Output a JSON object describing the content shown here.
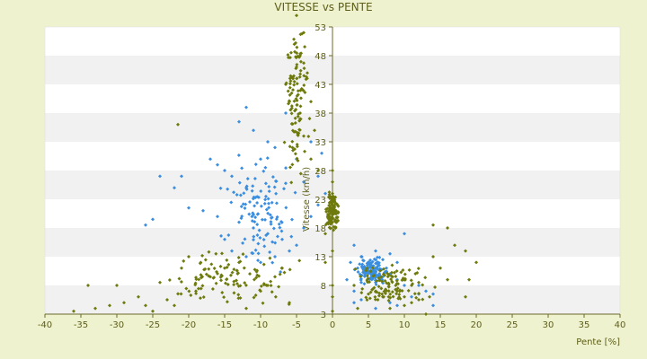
{
  "chart_data": {
    "type": "scatter",
    "title": "VITESSE vs PENTE",
    "xlabel": "Pente [%]",
    "ylabel": "Vitesse (km/h)",
    "xlim": [
      -40,
      40
    ],
    "ylim": [
      3,
      53
    ],
    "xticks": [
      -40,
      -35,
      -30,
      -25,
      -20,
      -15,
      -10,
      -5,
      0,
      5,
      10,
      15,
      20,
      25,
      30,
      35,
      40
    ],
    "yticks": [
      3,
      8,
      13,
      18,
      23,
      28,
      33,
      38,
      43,
      48,
      53
    ],
    "grid": "horizontal alternating bands",
    "legend": "none",
    "y_axis_position": "x=0",
    "series": [
      {
        "color": "#3a8ee0",
        "marker": "diamond",
        "clusters": [
          {
            "center": [
              -10,
              21
            ],
            "spread": [
              3.5,
              7
            ]
          },
          {
            "center": [
              5.5,
              10.5
            ],
            "spread": [
              1.6,
              1.6
            ]
          }
        ],
        "points": [
          [
            -12,
            39
          ],
          [
            -13,
            36.5
          ],
          [
            -11,
            35
          ],
          [
            -9,
            33
          ],
          [
            -6.5,
            38
          ],
          [
            -17,
            30
          ],
          [
            -16,
            29
          ],
          [
            -15,
            28
          ],
          [
            -8,
            32
          ],
          [
            -10,
            30
          ],
          [
            -21,
            27
          ],
          [
            -24,
            27
          ],
          [
            -22,
            25
          ],
          [
            -14,
            27
          ],
          [
            -12,
            25
          ],
          [
            -20,
            21.5
          ],
          [
            -25,
            19.5
          ],
          [
            -26,
            18.5
          ],
          [
            -18,
            21
          ],
          [
            -16,
            20
          ],
          [
            -13,
            19
          ],
          [
            -11,
            18
          ],
          [
            -9,
            17
          ],
          [
            -7,
            16
          ],
          [
            -5,
            15
          ],
          [
            -15,
            16
          ],
          [
            -14,
            14
          ],
          [
            -12,
            13
          ],
          [
            -10,
            12
          ],
          [
            -8,
            13
          ],
          [
            -6,
            14
          ],
          [
            -4,
            18
          ],
          [
            -3,
            20
          ],
          [
            -2,
            22
          ],
          [
            -4,
            26
          ],
          [
            -5,
            30
          ],
          [
            -3,
            33
          ],
          [
            -1.5,
            31
          ],
          [
            -2,
            27
          ],
          [
            -1,
            24
          ],
          [
            3,
            15
          ],
          [
            4,
            13
          ],
          [
            2.5,
            12
          ],
          [
            2,
            9
          ],
          [
            3,
            7
          ],
          [
            8,
            13.5
          ],
          [
            9,
            12
          ],
          [
            6,
            14
          ],
          [
            7,
            12.5
          ],
          [
            5,
            11
          ],
          [
            6,
            10.5
          ],
          [
            4.5,
            10
          ],
          [
            5.5,
            9.5
          ],
          [
            7,
            9.5
          ],
          [
            8,
            10
          ],
          [
            9,
            9
          ],
          [
            10,
            8
          ],
          [
            12,
            8
          ],
          [
            6,
            8.5
          ],
          [
            4,
            8.5
          ],
          [
            5,
            12
          ],
          [
            3.5,
            11
          ],
          [
            6.5,
            11.5
          ],
          [
            7.5,
            11
          ],
          [
            3,
            5
          ],
          [
            14,
            6.5
          ],
          [
            13,
            7
          ],
          [
            14,
            4.5
          ],
          [
            11,
            6
          ],
          [
            12,
            6.5
          ],
          [
            9,
            4.5
          ],
          [
            8,
            5
          ],
          [
            6,
            4
          ],
          [
            4,
            5.5
          ],
          [
            10,
            17
          ]
        ]
      },
      {
        "color": "#6e7a0c",
        "marker": "diamond",
        "clusters": [
          {
            "center": [
              -15,
              9
            ],
            "spread": [
              7,
              3.5
            ]
          },
          {
            "center": [
              -5,
              40
            ],
            "spread": [
              1.2,
              10
            ]
          },
          {
            "center": [
              0,
              21
            ],
            "spread": [
              0.6,
              3
            ]
          },
          {
            "center": [
              8,
              8
            ],
            "spread": [
              4,
              3
            ]
          }
        ],
        "points": [
          [
            -36,
            3.5
          ],
          [
            -34,
            8
          ],
          [
            -33,
            4
          ],
          [
            -31,
            4.5
          ],
          [
            -30,
            2
          ],
          [
            -30,
            8
          ],
          [
            -29,
            5
          ],
          [
            -27,
            6
          ],
          [
            -26,
            4.5
          ],
          [
            -25,
            3.5
          ],
          [
            -24,
            8.5
          ],
          [
            -23,
            5.5
          ],
          [
            -22,
            4.5
          ],
          [
            -21,
            11
          ],
          [
            -21.5,
            36
          ],
          [
            -20,
            13
          ],
          [
            -19,
            7
          ],
          [
            -17,
            9.5
          ],
          [
            -15,
            11
          ],
          [
            -13,
            12
          ],
          [
            -12,
            4
          ],
          [
            -10,
            7
          ],
          [
            -9,
            8
          ],
          [
            -8,
            9.5
          ],
          [
            -7,
            11
          ],
          [
            -6,
            5
          ],
          [
            -5.5,
            44
          ],
          [
            -5,
            46
          ],
          [
            -4.5,
            48
          ],
          [
            -6,
            40
          ],
          [
            -5.3,
            50
          ],
          [
            -4,
            52
          ],
          [
            -6.5,
            43
          ],
          [
            -5,
            55
          ],
          [
            -3.5,
            45
          ],
          [
            -4.5,
            38
          ],
          [
            -3,
            40
          ],
          [
            -2.5,
            35
          ],
          [
            -4,
            34
          ],
          [
            -3,
            30
          ],
          [
            -2,
            28
          ],
          [
            0,
            28
          ],
          [
            0,
            26
          ],
          [
            0,
            24
          ],
          [
            0,
            22.5
          ],
          [
            0.5,
            21
          ],
          [
            -0.5,
            20
          ],
          [
            0,
            19
          ],
          [
            0.7,
            22
          ],
          [
            -1,
            17
          ],
          [
            0,
            8
          ],
          [
            0,
            6
          ],
          [
            0,
            3.5
          ],
          [
            -1,
            12
          ],
          [
            0,
            14
          ],
          [
            14,
            18.5
          ],
          [
            16,
            18
          ],
          [
            17,
            15
          ],
          [
            18.5,
            14
          ],
          [
            19,
            9
          ],
          [
            20,
            12
          ],
          [
            18.5,
            6
          ],
          [
            16,
            9
          ],
          [
            15,
            11
          ],
          [
            14,
            13
          ],
          [
            11,
            8
          ],
          [
            10,
            6
          ],
          [
            11,
            5
          ],
          [
            12,
            5.5
          ],
          [
            13.5,
            6
          ],
          [
            24,
            2.5
          ],
          [
            13,
            3
          ],
          [
            8,
            4
          ],
          [
            10,
            4.5
          ],
          [
            9,
            7
          ],
          [
            7,
            6
          ],
          [
            6,
            7
          ],
          [
            5,
            6.5
          ],
          [
            3,
            8
          ],
          [
            3.5,
            4
          ]
        ]
      }
    ]
  }
}
